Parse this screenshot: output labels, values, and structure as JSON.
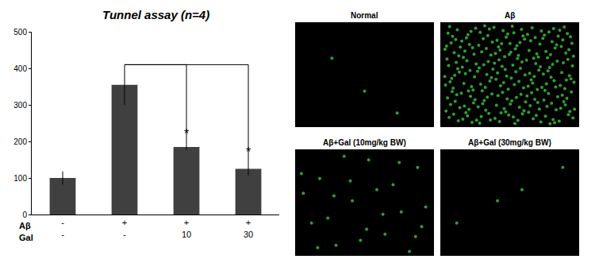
{
  "chart_data": {
    "type": "bar",
    "title": "Tunnel assay (n=4)",
    "categories": [
      null,
      null,
      null,
      null
    ],
    "values": [
      100,
      355,
      185,
      125
    ],
    "errors": [
      18,
      55,
      8,
      18
    ],
    "color": "#404040",
    "ylim": [
      0,
      500
    ],
    "yticks": [
      0,
      100,
      200,
      300,
      400,
      500
    ],
    "grid": false,
    "table": [
      {
        "label": "Aβ",
        "cells": [
          "-",
          "+",
          "+",
          "+"
        ]
      },
      {
        "label": "Gal",
        "cells": [
          "-",
          "-",
          "10",
          "30"
        ]
      }
    ],
    "comparisons": [
      {
        "from": 1,
        "to": 2,
        "label": "*"
      },
      {
        "from": 1,
        "to": 3,
        "label": "*"
      }
    ]
  },
  "panels": [
    {
      "label": "Normal",
      "cell_count": 3
    },
    {
      "label": "Aβ",
      "cell_count": 250
    },
    {
      "label": "Aβ+Gal (10mg/kg BW)",
      "cell_count": 25
    },
    {
      "label": "Aβ+Gal (30mg/kg BW)",
      "cell_count": 4
    }
  ]
}
